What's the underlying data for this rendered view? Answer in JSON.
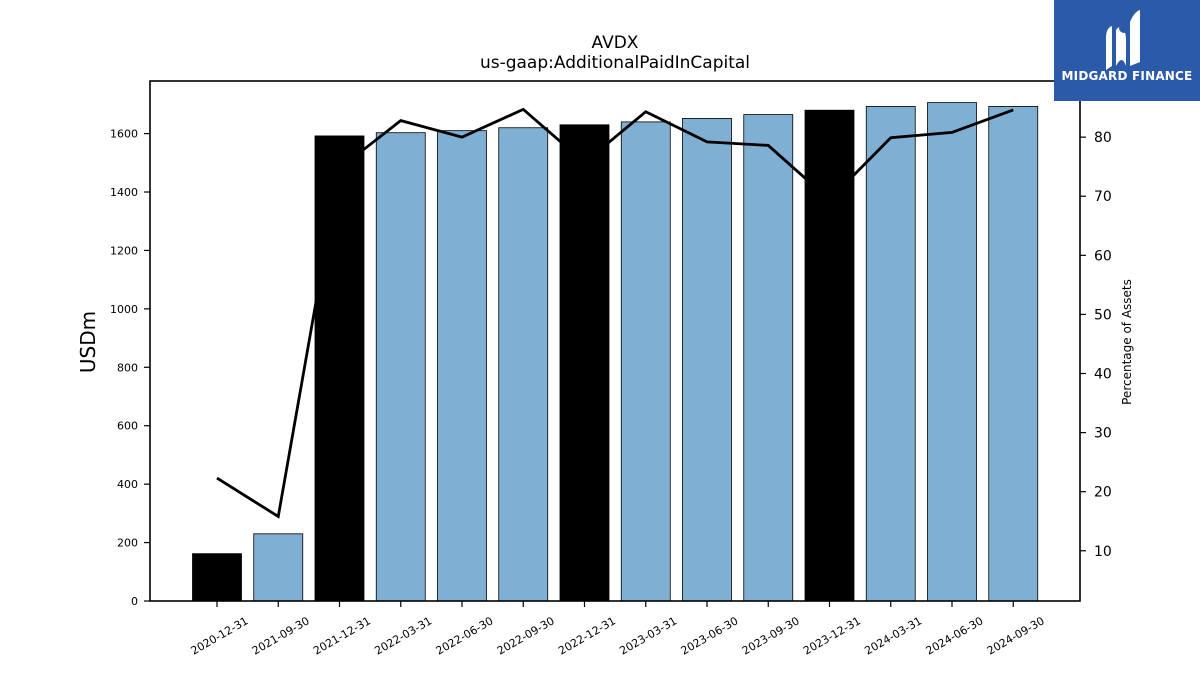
{
  "logo": {
    "text": "MIDGARD FINANCE",
    "bg_color": "#2b5aa8"
  },
  "chart_data": {
    "type": "bar",
    "title": "AVDX",
    "subtitle": "us-gaap:AdditionalPaidInCapital",
    "ylabel": "USDm",
    "y2label": "Percentage of Assets",
    "ylim": [
      0,
      1780
    ],
    "y2lim": [
      1.5,
      89.5
    ],
    "yticks": [
      0,
      200,
      400,
      600,
      800,
      1000,
      1200,
      1400,
      1600
    ],
    "y2ticks": [
      10,
      20,
      30,
      40,
      50,
      60,
      70,
      80
    ],
    "categories": [
      "2020-12-31",
      "2021-09-30",
      "2021-12-31",
      "2022-03-31",
      "2022-06-30",
      "2022-09-30",
      "2022-12-31",
      "2023-03-31",
      "2023-06-30",
      "2023-09-30",
      "2023-12-31",
      "2024-03-31",
      "2024-06-30",
      "2024-09-30"
    ],
    "values": [
      162,
      230,
      1592,
      1603,
      1610,
      1620,
      1630,
      1640,
      1652,
      1665,
      1680,
      1693,
      1706,
      1693
    ],
    "annual": [
      true,
      false,
      true,
      false,
      false,
      false,
      true,
      false,
      false,
      false,
      true,
      false,
      false,
      false
    ],
    "line_series": {
      "values": [
        22.3,
        15.8,
        74.7,
        82.8,
        80.0,
        84.7,
        75.7,
        84.3,
        79.2,
        78.6,
        69.4,
        79.9,
        80.8,
        84.6
      ]
    },
    "colors": {
      "annual_bar": "#000000",
      "quarter_bar": "#7fafd3",
      "line": "#000000"
    },
    "grid": false
  }
}
